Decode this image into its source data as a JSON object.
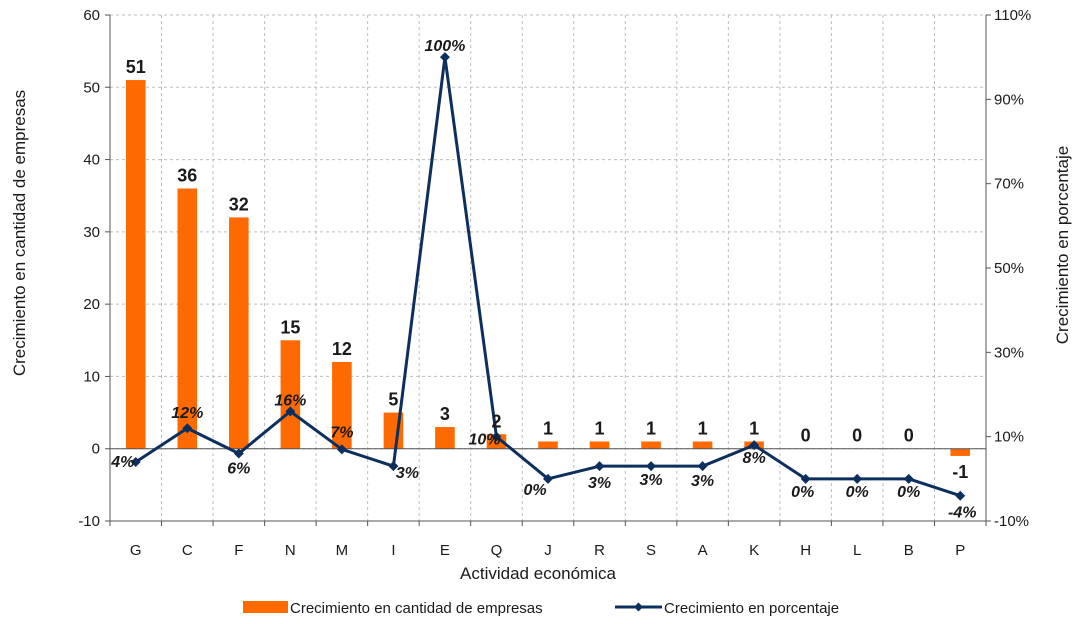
{
  "chart_data": {
    "type": "bar+line",
    "xlabel": "Actividad económica",
    "ylabel_left": "Crecimiento en cantidad de empresas",
    "ylabel_right": "Crecimiento en porcentaje",
    "categories": [
      "G",
      "C",
      "F",
      "N",
      "M",
      "I",
      "E",
      "Q",
      "J",
      "R",
      "S",
      "A",
      "K",
      "H",
      "L",
      "B",
      "P"
    ],
    "ylim_left": [
      -10,
      60
    ],
    "yticks_left": [
      "-10",
      "0",
      "10",
      "20",
      "30",
      "40",
      "50",
      "60"
    ],
    "ylim_right": [
      -10,
      110
    ],
    "yticks_right": [
      "-10%",
      "10%",
      "30%",
      "50%",
      "70%",
      "90%",
      "110%"
    ],
    "grid": true,
    "legend_position": "bottom",
    "series": [
      {
        "name": "Crecimiento en cantidad de empresas",
        "kind": "bar",
        "axis": "left",
        "color": "#ff6a00",
        "values": [
          51,
          36,
          32,
          15,
          12,
          5,
          3,
          2,
          1,
          1,
          1,
          1,
          1,
          0,
          0,
          0,
          -1
        ],
        "labels": [
          "51",
          "36",
          "32",
          "15",
          "12",
          "5",
          "3",
          "2",
          "1",
          "1",
          "1",
          "1",
          "1",
          "0",
          "0",
          "0",
          "-1"
        ]
      },
      {
        "name": "Crecimiento en porcentaje",
        "kind": "line",
        "axis": "right",
        "color": "#0d2f5e",
        "values": [
          4,
          12,
          6,
          16,
          7,
          3,
          100,
          10,
          0,
          3,
          3,
          3,
          8,
          0,
          0,
          0,
          -4
        ],
        "labels": [
          "4%",
          "12%",
          "6%",
          "16%",
          "7%",
          "3%",
          "100%",
          "10%",
          "0%",
          "3%",
          "3%",
          "3%",
          "8%",
          "0%",
          "0%",
          "0%",
          "-4%"
        ]
      }
    ]
  }
}
